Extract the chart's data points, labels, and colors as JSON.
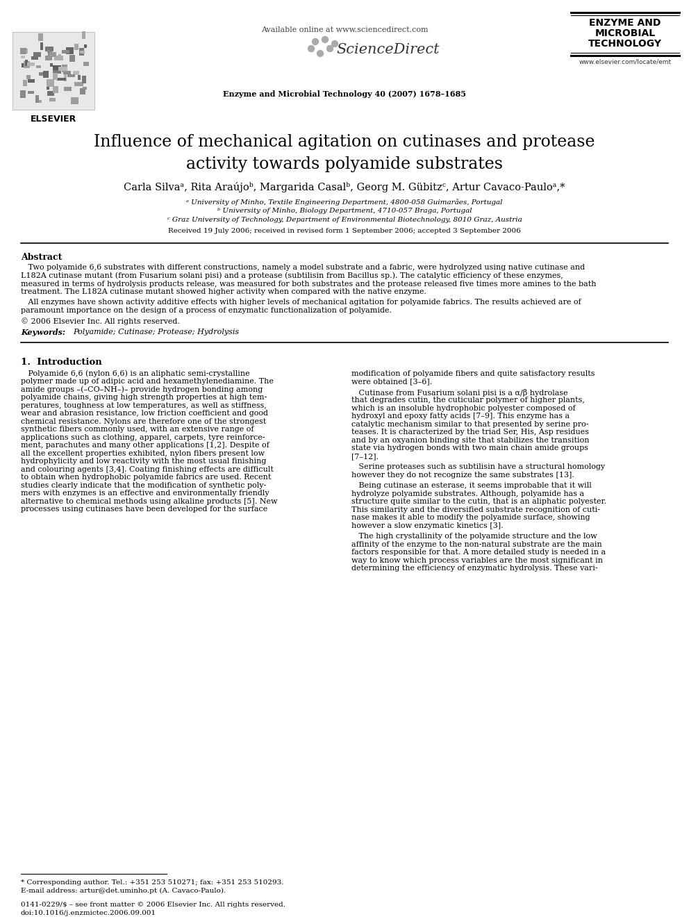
{
  "background_color": "#ffffff",
  "title": "Influence of mechanical agitation on cutinases and protease\nactivity towards polyamide substrates",
  "journal_line": "Enzyme and Microbial Technology 40 (2007) 1678–1685",
  "available_online": "Available online at www.sciencedirect.com",
  "sciencedirect_text": "ScienceDirect",
  "journal_logo_bottom": "www.elsevier.com/locate/emt",
  "elsevier_text": "ELSEVIER",
  "authors": "Carla Silvaᵃ, Rita Araújoᵇ, Margarida Casalᵇ, Georg M. Gübitzᶜ, Artur Cavaco-Pauloᵃ,*",
  "affil_a": "ᵃ University of Minho, Textile Engineering Department, 4800-058 Guimarães, Portugal",
  "affil_b": "ᵇ University of Minho, Biology Department, 4710-057 Braga, Portugal",
  "affil_c": "ᶜ Graz University of Technology, Department of Environmental Biotechnology, 8010 Graz, Austria",
  "received_line": "Received 19 July 2006; received in revised form 1 September 2006; accepted 3 September 2006",
  "abstract_title": "Abstract",
  "abstract_copyright": "© 2006 Elsevier Inc. All rights reserved.",
  "keywords_label": "Keywords:",
  "keywords": "Polyamide; Cutinase; Protease; Hydrolysis",
  "section1_title": "1.  Introduction",
  "footnote_star": "* Corresponding author. Tel.: +351 253 510271; fax: +351 253 510293.",
  "footnote_email": "E-mail address: artur@det.uminho.pt (A. Cavaco-Paulo).",
  "footer_issn": "0141-0229/$ – see front matter © 2006 Elsevier Inc. All rights reserved.",
  "footer_doi": "doi:10.1016/j.enzmictec.2006.09.001",
  "abs1_lines": [
    "   Two polyamide 6,6 substrates with different constructions, namely a model substrate and a fabric, were hydrolyzed using native cutinase and",
    "L182A cutinase mutant (from Fusarium solani pisi) and a protease (subtilisin from Bacillus sp.). The catalytic efficiency of these enzymes,",
    "measured in terms of hydrolysis products release, was measured for both substrates and the protease released five times more amines to the bath",
    "treatment. The L182A cutinase mutant showed higher activity when compared with the native enzyme."
  ],
  "abs2_lines": [
    "   All enzymes have shown activity additive effects with higher levels of mechanical agitation for polyamide fabrics. The results achieved are of",
    "paramount importance on the design of a process of enzymatic functionalization of polyamide."
  ],
  "col1_lines": [
    "   Polyamide 6,6 (nylon 6,6) is an aliphatic semi-crystalline",
    "polymer made up of adipic acid and hexamethylenediamine. The",
    "amide groups –(–CO–NH–)– provide hydrogen bonding among",
    "polyamide chains, giving high strength properties at high tem-",
    "peratures, toughness at low temperatures, as well as stiffness,",
    "wear and abrasion resistance, low friction coefficient and good",
    "chemical resistance. Nylons are therefore one of the strongest",
    "synthetic fibers commonly used, with an extensive range of",
    "applications such as clothing, apparel, carpets, tyre reinforce-",
    "ment, parachutes and many other applications [1,2]. Despite of",
    "all the excellent properties exhibited, nylon fibers present low",
    "hydrophylicity and low reactivity with the most usual finishing",
    "and colouring agents [3,4]. Coating finishing effects are difficult",
    "to obtain when hydrophobic polyamide fabrics are used. Recent",
    "studies clearly indicate that the modification of synthetic poly-",
    "mers with enzymes is an effective and environmentally friendly",
    "alternative to chemical methods using alkaline products [5]. New",
    "processes using cutinases have been developed for the surface"
  ],
  "col2_lines_p1": [
    "modification of polyamide fibers and quite satisfactory results",
    "were obtained [3–6]."
  ],
  "col2_lines_p2": [
    "   Cutinase from Fusarium solani pisi is a α/β hydrolase",
    "that degrades cutin, the cuticular polymer of higher plants,",
    "which is an insoluble hydrophobic polyester composed of",
    "hydroxyl and epoxy fatty acids [7–9]. This enzyme has a",
    "catalytic mechanism similar to that presented by serine pro-",
    "teases. It is characterized by the triad Ser, His, Asp residues",
    "and by an oxyanion binding site that stabilizes the transition",
    "state via hydrogen bonds with two main chain amide groups",
    "[7–12]."
  ],
  "col2_lines_p3": [
    "   Serine proteases such as subtilisin have a structural homology",
    "however they do not recognize the same substrates [13]."
  ],
  "col2_lines_p4": [
    "   Being cutinase an esterase, it seems improbable that it will",
    "hydrolyze polyamide substrates. Although, polyamide has a",
    "structure quite similar to the cutin, that is an aliphatic polyester.",
    "This similarity and the diversified substrate recognition of cuti-",
    "nase makes it able to modify the polyamide surface, showing",
    "however a slow enzymatic kinetics [3]."
  ],
  "col2_lines_p5": [
    "   The high crystallinity of the polyamide structure and the low",
    "affinity of the enzyme to the non-natural substrate are the main",
    "factors responsible for that. A more detailed study is needed in a",
    "way to know which process variables are the most significant in",
    "determining the efficiency of enzymatic hydrolysis. These vari-"
  ]
}
